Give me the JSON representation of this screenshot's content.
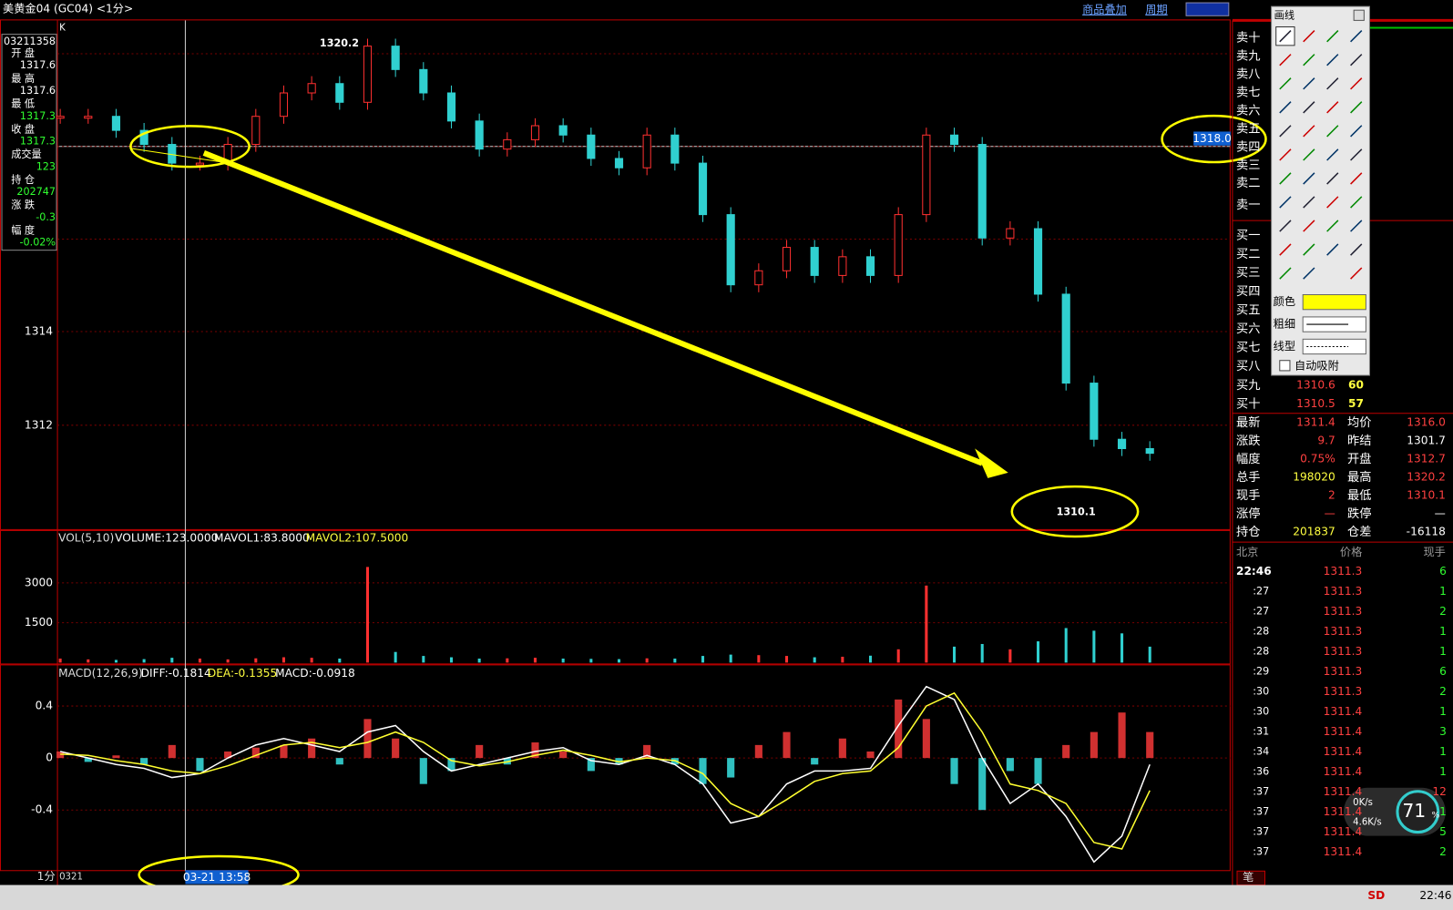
{
  "title_bar": {
    "title": "美黄金04 (GC04) <1分>",
    "links": [
      "商品叠加",
      "周期"
    ]
  },
  "info_panel": {
    "code": "03211358",
    "fields": [
      {
        "label": "开  盘",
        "value": "1317.6"
      },
      {
        "label": "最  高",
        "value": "1317.6"
      },
      {
        "label": "最  低",
        "value": "1317.3"
      },
      {
        "label": "收  盘",
        "value": "1317.3"
      },
      {
        "label": "成交量",
        "value": "123"
      },
      {
        "label": "持  仓",
        "value": "202747"
      },
      {
        "label": "涨  跌",
        "value": "-0.3"
      },
      {
        "label": "幅  度",
        "value": "-0.02%"
      }
    ]
  },
  "price_chart": {
    "type": "candle",
    "label": "K",
    "values": [
      1318.6,
      1318.6,
      1318.3,
      1318.0,
      1317.6,
      1317.6,
      1318.0,
      1318.6,
      1319.1,
      1319.3,
      1318.9,
      1320.1,
      1319.6,
      1319.1,
      1318.5,
      1317.9,
      1318.1,
      1318.4,
      1318.2,
      1317.7,
      1317.5,
      1318.2,
      1317.6,
      1316.5,
      1315.0,
      1315.3,
      1315.8,
      1315.2,
      1315.6,
      1315.2,
      1316.5,
      1318.2,
      1318.0,
      1316.0,
      1316.2,
      1314.8,
      1312.9,
      1311.7,
      1311.5,
      1311.4
    ],
    "ylim": [
      1309.76,
      1320.65
    ],
    "yticks": [
      1312,
      1314
    ],
    "high_label": "1320.2",
    "low_label": "1310.1",
    "crosshair_label": "1318.0"
  },
  "volume_chart": {
    "type": "bar",
    "legend": [
      "VOL(5,10)",
      "VOLUME:123.0000",
      "MAVOL1:83.8000",
      "MAVOL2:107.5000"
    ],
    "values": [
      150,
      120,
      100,
      130,
      180,
      150,
      120,
      160,
      200,
      180,
      150,
      3600,
      400,
      250,
      200,
      150,
      160,
      180,
      150,
      140,
      130,
      160,
      150,
      250,
      300,
      280,
      250,
      200,
      220,
      260,
      500,
      2900,
      600,
      700,
      500,
      800,
      1300,
      1200,
      1100,
      600
    ],
    "ylim": [
      0,
      4990
    ],
    "yticks": [
      3000,
      1500
    ]
  },
  "macd_chart": {
    "type": "macd",
    "legend": [
      "MACD(12,26,9)",
      "DIFF:-0.1814",
      "DEA:-0.1355",
      "MACD:-0.0918"
    ],
    "histogram": [
      0.05,
      -0.03,
      0.02,
      -0.05,
      0.1,
      -0.1,
      0.05,
      0.08,
      0.1,
      0.15,
      -0.05,
      0.3,
      0.15,
      -0.2,
      -0.1,
      0.1,
      -0.05,
      0.12,
      0.05,
      -0.1,
      -0.05,
      0.1,
      -0.05,
      -0.2,
      -0.15,
      0.1,
      0.2,
      -0.05,
      0.15,
      0.05,
      0.45,
      0.3,
      -0.2,
      -0.4,
      -0.1,
      -0.2,
      0.1,
      0.2,
      0.35,
      0.2
    ],
    "diff": [
      0.05,
      0.0,
      -0.05,
      -0.08,
      -0.15,
      -0.12,
      0.0,
      0.1,
      0.15,
      0.1,
      0.05,
      0.2,
      0.25,
      0.05,
      -0.1,
      -0.05,
      0.0,
      0.05,
      0.08,
      -0.02,
      -0.05,
      0.02,
      -0.05,
      -0.2,
      -0.5,
      -0.45,
      -0.2,
      -0.1,
      -0.1,
      -0.08,
      0.25,
      0.55,
      0.45,
      0.0,
      -0.35,
      -0.2,
      -0.45,
      -0.8,
      -0.6,
      -0.05
    ],
    "dea": [
      0.03,
      0.02,
      -0.02,
      -0.05,
      -0.1,
      -0.12,
      -0.06,
      0.02,
      0.1,
      0.12,
      0.08,
      0.12,
      0.2,
      0.12,
      -0.02,
      -0.06,
      -0.03,
      0.02,
      0.06,
      0.02,
      -0.03,
      0.0,
      -0.02,
      -0.12,
      -0.35,
      -0.45,
      -0.32,
      -0.18,
      -0.12,
      -0.1,
      0.08,
      0.4,
      0.5,
      0.2,
      -0.2,
      -0.25,
      -0.35,
      -0.65,
      -0.7,
      -0.25
    ],
    "ylim": [
      -0.87,
      0.72
    ],
    "yticks": [
      0.4,
      0,
      -0.4
    ]
  },
  "time_axis": {
    "period": "1分",
    "date": "0321",
    "cursor": "03-21 13:58"
  },
  "order_book": {
    "sell": [
      "卖十",
      "卖九",
      "卖八",
      "卖七",
      "卖六",
      "卖五",
      "卖四",
      "卖三",
      "卖二",
      "卖一"
    ],
    "buy": [
      {
        "label": "买一"
      },
      {
        "label": "买二"
      },
      {
        "label": "买三"
      },
      {
        "label": "买四"
      },
      {
        "label": "买五"
      },
      {
        "label": "买六"
      },
      {
        "label": "买七"
      },
      {
        "label": "买八"
      },
      {
        "label": "买九",
        "price": "1310.6",
        "qty": "60"
      },
      {
        "label": "买十",
        "price": "1310.5",
        "qty": "57"
      }
    ]
  },
  "quote": [
    [
      "最新",
      "1311.4",
      "均价",
      "1316.0"
    ],
    [
      "涨跌",
      "9.7",
      "昨结",
      "1301.7"
    ],
    [
      "幅度",
      "0.75%",
      "开盘",
      "1312.7"
    ],
    [
      "总手",
      "198020",
      "最高",
      "1320.2"
    ],
    [
      "现手",
      "2",
      "最低",
      "1310.1"
    ],
    [
      "涨停",
      "—",
      "跌停",
      "—"
    ],
    [
      "持仓",
      "201837",
      "仓差",
      "-16118"
    ]
  ],
  "ticks": {
    "header": [
      "北京",
      "价格",
      "现手"
    ],
    "rows": [
      [
        "22:46",
        "1311.3",
        "6"
      ],
      [
        ":27",
        "1311.3",
        "1"
      ],
      [
        ":27",
        "1311.3",
        "2"
      ],
      [
        ":28",
        "1311.3",
        "1"
      ],
      [
        ":28",
        "1311.3",
        "1"
      ],
      [
        ":29",
        "1311.3",
        "6"
      ],
      [
        ":30",
        "1311.3",
        "2"
      ],
      [
        ":30",
        "1311.4",
        "1"
      ],
      [
        ":31",
        "1311.4",
        "3"
      ],
      [
        ":34",
        "1311.4",
        "1"
      ],
      [
        ":36",
        "1311.4",
        "1"
      ],
      [
        ":37",
        "1311.4",
        "12"
      ],
      [
        ":37",
        "1311.4",
        "1"
      ],
      [
        ":37",
        "1311.4",
        "5"
      ],
      [
        ":37",
        "1311.4",
        "2"
      ]
    ],
    "tab": "笔"
  },
  "draw_tools": {
    "title": "画线",
    "color_label": "颜色",
    "width_label": "粗细",
    "style_label": "线型",
    "snap_label": "自动吸附"
  },
  "status_bar": {
    "brand": "SD",
    "time": "22:46"
  },
  "net_widget": {
    "up": "0K/s",
    "down": "4.6K/s",
    "cpu": "71",
    "unit": "%"
  }
}
